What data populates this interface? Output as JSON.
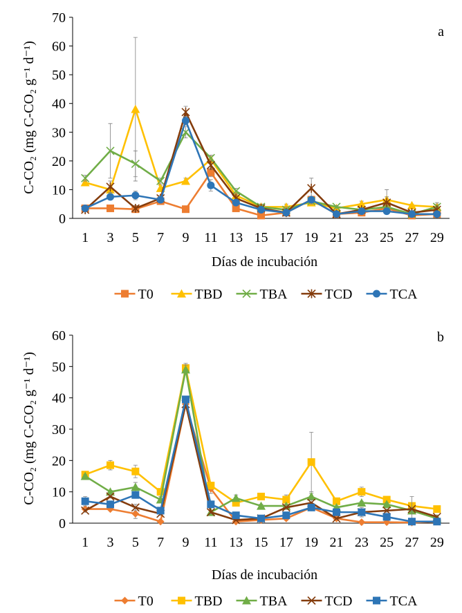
{
  "chart_data": [
    {
      "type": "line",
      "panel_label": "a",
      "xlabel": "Días de incubación",
      "ylabel": "C-CO₂ (mg C-CO₂ g⁻¹ d⁻¹)",
      "ylim": [
        0,
        70
      ],
      "yticks": [
        0,
        10,
        20,
        30,
        40,
        50,
        60,
        70
      ],
      "x": [
        1,
        3,
        5,
        7,
        9,
        11,
        13,
        15,
        17,
        19,
        21,
        23,
        25,
        27,
        29
      ],
      "grid": false,
      "legend_position": "bottom",
      "series": [
        {
          "name": "T0",
          "color": "#ED7D31",
          "marker": "square",
          "values": [
            3.5,
            3.5,
            3.2,
            6.0,
            3.2,
            16.0,
            3.5,
            1.0,
            2.0,
            6.5,
            1.5,
            2.0,
            3.5,
            1.0,
            1.5
          ],
          "errors": [
            0.5,
            0.5,
            0.5,
            0.5,
            0.3,
            1.5,
            0.5,
            0.3,
            0.4,
            0.8,
            0.3,
            0.3,
            0.5,
            0.3,
            0.3
          ]
        },
        {
          "name": "TBD",
          "color": "#FFC000",
          "marker": "triangle",
          "values": [
            12.5,
            10.0,
            38.0,
            10.5,
            13.0,
            20.5,
            8.0,
            4.0,
            4.0,
            5.5,
            3.5,
            5.0,
            6.5,
            4.5,
            4.0
          ],
          "errors": [
            1.0,
            1.0,
            25.0,
            1.0,
            1.0,
            1.0,
            1.0,
            1.0,
            1.0,
            1.0,
            0.5,
            1.0,
            3.5,
            0.5,
            1.0
          ]
        },
        {
          "name": "TBA",
          "color": "#70AD47",
          "marker": "x",
          "values": [
            14.0,
            23.5,
            19.0,
            13.0,
            30.0,
            21.0,
            9.5,
            4.0,
            3.0,
            6.0,
            4.0,
            3.0,
            4.0,
            1.5,
            4.0
          ],
          "errors": [
            1.0,
            9.5,
            4.5,
            1.0,
            2.0,
            1.0,
            1.0,
            1.0,
            1.0,
            1.0,
            0.5,
            0.5,
            1.0,
            0.5,
            1.5
          ]
        },
        {
          "name": "TCD",
          "color": "#843C0C",
          "marker": "star",
          "values": [
            3.0,
            11.0,
            3.5,
            7.0,
            37.0,
            18.5,
            7.0,
            3.5,
            2.0,
            10.5,
            1.5,
            3.0,
            5.5,
            2.0,
            3.0
          ],
          "errors": [
            0.5,
            2.0,
            1.0,
            1.0,
            2.0,
            1.5,
            1.0,
            0.5,
            0.5,
            3.5,
            0.3,
            0.5,
            2.0,
            0.3,
            1.0
          ]
        },
        {
          "name": "TCA",
          "color": "#2E75B6",
          "marker": "circle",
          "values": [
            3.5,
            7.5,
            8.0,
            6.5,
            34.0,
            11.5,
            5.5,
            3.0,
            2.0,
            6.5,
            1.5,
            2.5,
            2.5,
            1.5,
            1.5
          ],
          "errors": [
            1.0,
            0.5,
            1.5,
            0.5,
            1.5,
            2.0,
            0.5,
            0.5,
            0.3,
            1.0,
            0.3,
            0.3,
            0.5,
            0.3,
            0.3
          ]
        }
      ]
    },
    {
      "type": "line",
      "panel_label": "b",
      "xlabel": "Días de incubación",
      "ylabel": "C-CO₂ (mg C-CO₂ g⁻¹ d⁻¹)",
      "ylim": [
        0,
        60
      ],
      "yticks": [
        0,
        10,
        20,
        30,
        40,
        50,
        60
      ],
      "x": [
        1,
        3,
        5,
        7,
        9,
        11,
        13,
        15,
        17,
        19,
        21,
        23,
        25,
        27,
        29
      ],
      "grid": false,
      "legend_position": "bottom",
      "series": [
        {
          "name": "T0",
          "color": "#ED7D31",
          "marker": "diamond",
          "values": [
            4.5,
            4.5,
            3.0,
            0.5,
            38.0,
            11.0,
            0.5,
            1.0,
            1.5,
            5.0,
            1.5,
            0.3,
            0.3,
            0.2,
            0.5
          ],
          "errors": [
            1.0,
            0.5,
            1.5,
            0.3,
            1.0,
            1.5,
            0.3,
            0.3,
            0.5,
            1.0,
            0.3,
            0.2,
            0.2,
            0.1,
            0.2
          ]
        },
        {
          "name": "TBD",
          "color": "#FFC000",
          "marker": "square",
          "values": [
            15.5,
            18.5,
            16.5,
            10.0,
            49.5,
            12.0,
            6.5,
            8.5,
            7.5,
            19.5,
            7.0,
            10.0,
            7.5,
            5.5,
            4.5
          ],
          "errors": [
            0.5,
            1.5,
            2.0,
            0.5,
            1.5,
            1.0,
            1.0,
            0.5,
            1.5,
            9.5,
            1.0,
            1.5,
            1.0,
            1.0,
            0.5
          ]
        },
        {
          "name": "TBA",
          "color": "#70AD47",
          "marker": "triangle",
          "values": [
            15.0,
            10.0,
            11.5,
            7.5,
            49.0,
            3.5,
            8.0,
            5.5,
            5.5,
            8.5,
            5.0,
            6.5,
            6.0,
            4.0,
            1.5
          ],
          "errors": [
            0.5,
            0.5,
            1.5,
            1.0,
            1.5,
            0.5,
            1.0,
            0.5,
            0.5,
            1.0,
            0.5,
            0.5,
            0.5,
            0.5,
            0.5
          ]
        },
        {
          "name": "TCD",
          "color": "#843C0C",
          "marker": "x",
          "values": [
            4.0,
            8.5,
            5.0,
            3.0,
            38.0,
            3.5,
            1.0,
            1.5,
            5.0,
            6.5,
            1.5,
            3.5,
            4.0,
            4.5,
            2.0
          ],
          "errors": [
            0.5,
            0.5,
            1.0,
            0.5,
            1.0,
            0.5,
            0.3,
            0.3,
            0.5,
            1.0,
            0.3,
            0.5,
            0.5,
            4.0,
            0.5
          ]
        },
        {
          "name": "TCA",
          "color": "#2E75B6",
          "marker": "square",
          "values": [
            7.0,
            6.0,
            9.0,
            4.0,
            39.5,
            6.0,
            2.5,
            1.5,
            2.5,
            5.0,
            3.5,
            3.5,
            2.0,
            0.5,
            0.5
          ],
          "errors": [
            1.5,
            0.5,
            1.0,
            1.0,
            1.0,
            1.0,
            0.5,
            0.3,
            0.5,
            1.0,
            0.5,
            1.5,
            0.5,
            0.2,
            0.2
          ]
        }
      ]
    }
  ]
}
